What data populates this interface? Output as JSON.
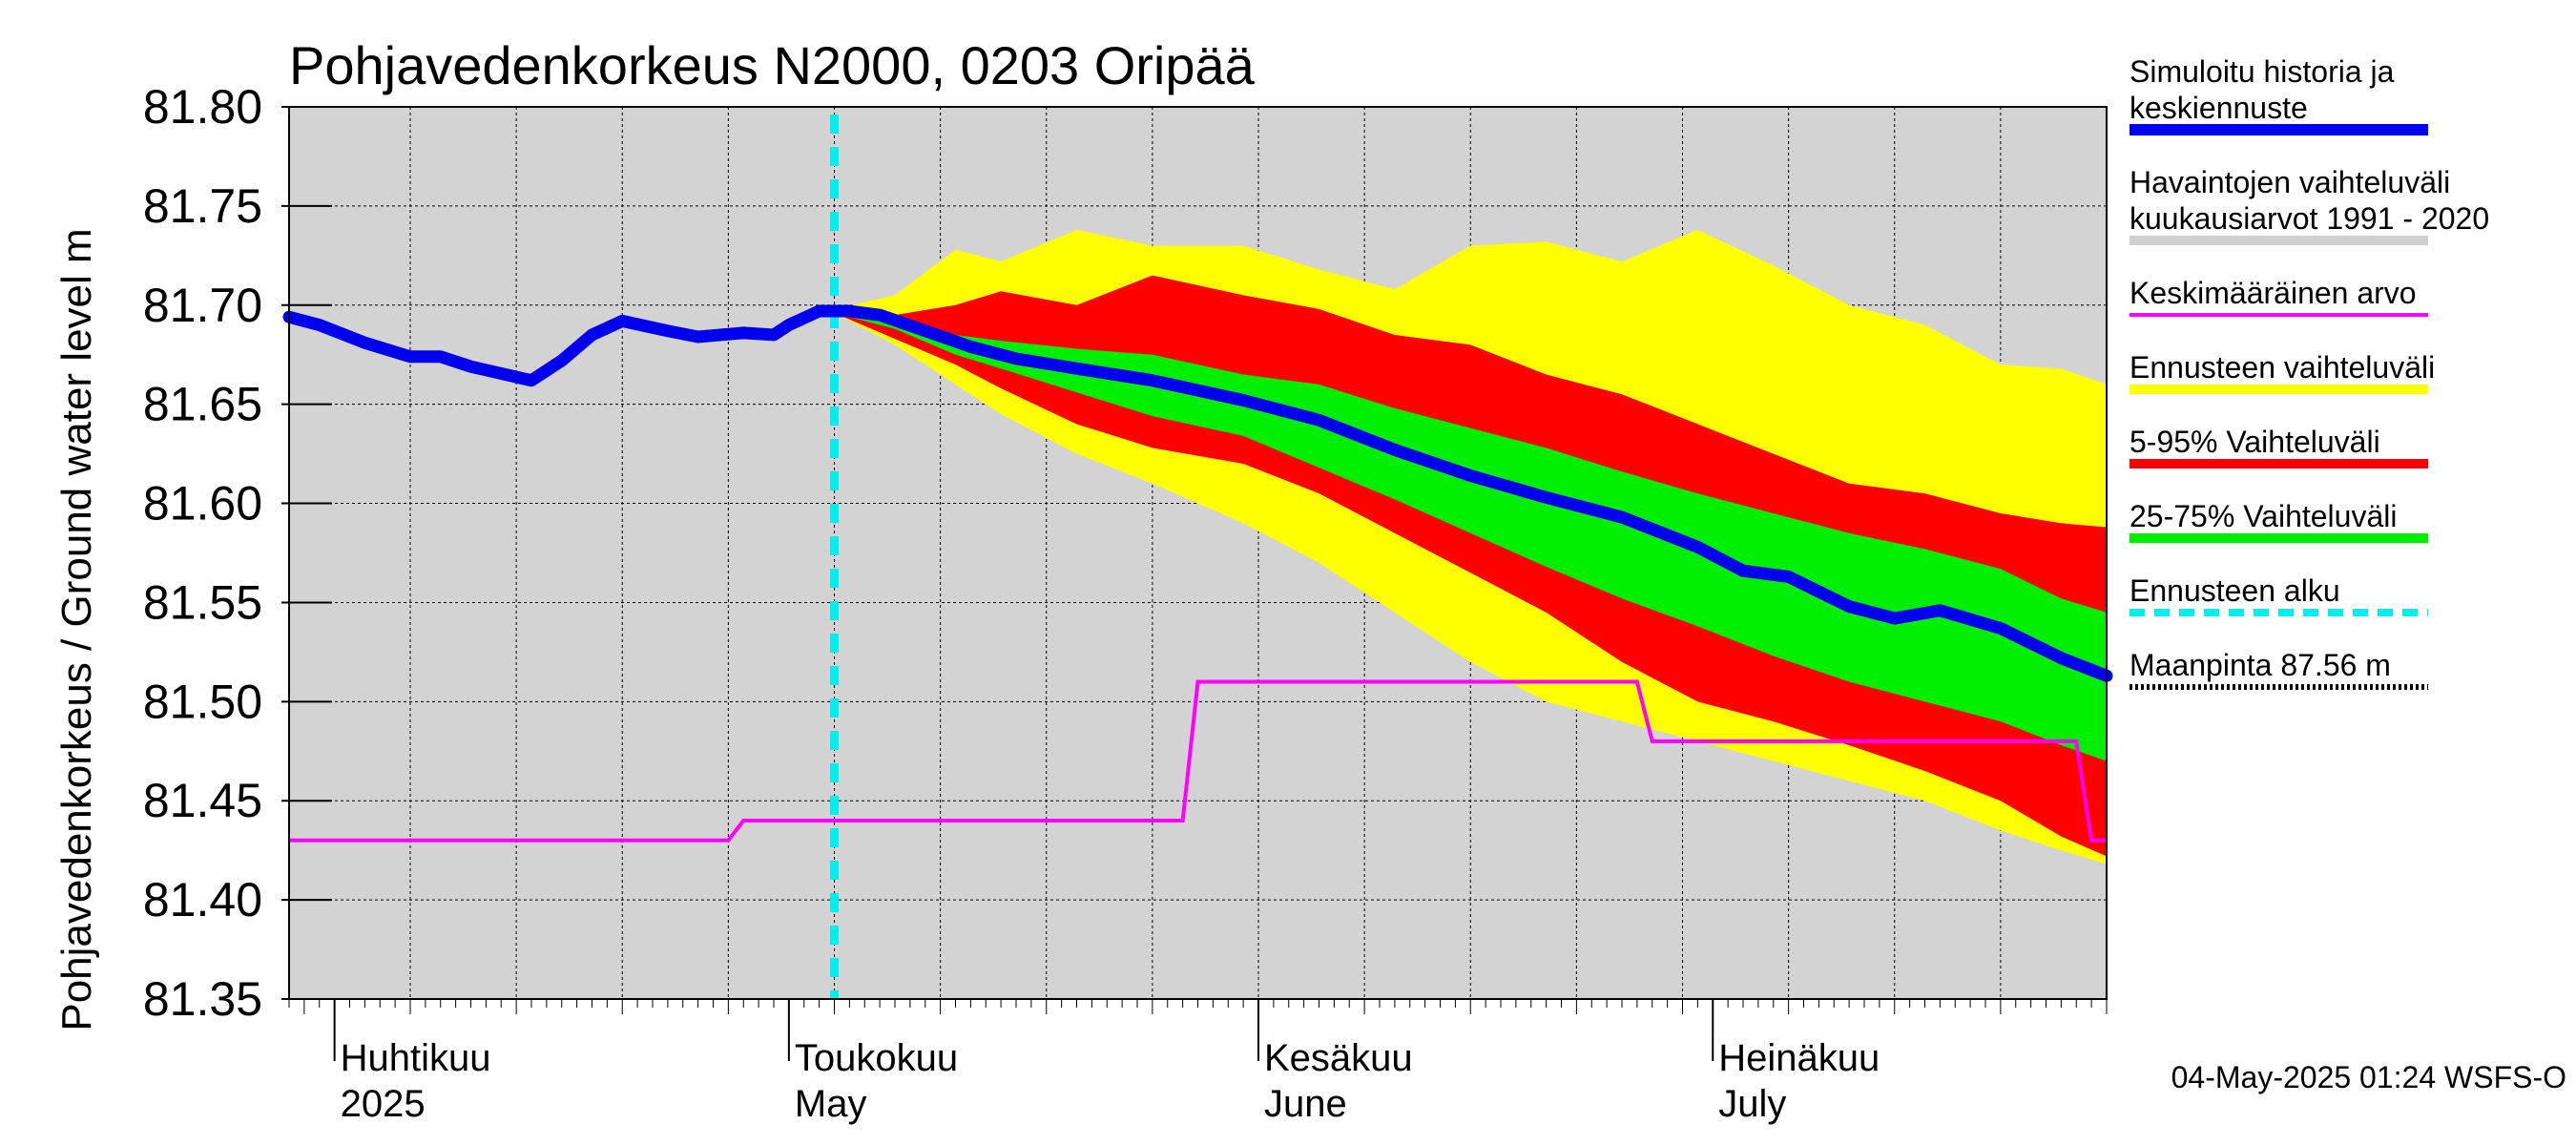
{
  "chart_data": {
    "type": "area",
    "title": "Pohjavedenkorkeus N2000, 0203 Oripää",
    "ylabel": "Pohjavedenkorkeus / Ground water level   m",
    "ylim": [
      81.35,
      81.8
    ],
    "yticks": [
      "81.80",
      "81.75",
      "81.70",
      "81.65",
      "81.60",
      "81.55",
      "81.50",
      "81.45",
      "81.40",
      "81.35"
    ],
    "xlim": [
      "2025-03-29",
      "2025-07-27"
    ],
    "month_labels": [
      {
        "date": "2025-04-01",
        "line1": "Huhtikuu",
        "line2": "2025"
      },
      {
        "date": "2025-05-01",
        "line1": "Toukokuu",
        "line2": "May"
      },
      {
        "date": "2025-06-01",
        "line1": "Kesäkuu",
        "line2": "June"
      },
      {
        "date": "2025-07-01",
        "line1": "Heinäkuu",
        "line2": "July"
      }
    ],
    "forecast_start": "2025-05-04",
    "footer": "04-May-2025 01:24 WSFS-O",
    "legend": [
      {
        "label": "Simuloitu historia ja keskiennuste",
        "color": "#0000ee",
        "style": "thick"
      },
      {
        "label": "Havaintojen vaihteluväli  kuukausiarvot 1991 - 2020",
        "color": "#d0d0d0",
        "style": "band"
      },
      {
        "label": "Keskimääräinen arvo",
        "color": "#ff00ff",
        "style": "thin"
      },
      {
        "label": "Ennusteen vaihteluväli",
        "color": "#ffff00",
        "style": "band"
      },
      {
        "label": "5-95% Vaihteluväli",
        "color": "#ff0000",
        "style": "band"
      },
      {
        "label": "25-75% Vaihteluväli",
        "color": "#00ee00",
        "style": "band"
      },
      {
        "label": "Ennusteen alku",
        "color": "#00eeee",
        "style": "dashed"
      },
      {
        "label": "Maanpinta 87.56 m",
        "color": "#000000",
        "style": "dotted"
      }
    ],
    "series": [
      {
        "name": "Simuloitu historia ja keskiennuste",
        "color": "#0000ee",
        "x": [
          "2025-03-29",
          "2025-03-31",
          "2025-04-03",
          "2025-04-06",
          "2025-04-08",
          "2025-04-10",
          "2025-04-14",
          "2025-04-16",
          "2025-04-18",
          "2025-04-20",
          "2025-04-23",
          "2025-04-25",
          "2025-04-28",
          "2025-04-30",
          "2025-05-01",
          "2025-05-03",
          "2025-05-05",
          "2025-05-07",
          "2025-05-10",
          "2025-05-13",
          "2025-05-16",
          "2025-05-20",
          "2025-05-25",
          "2025-05-31",
          "2025-06-05",
          "2025-06-10",
          "2025-06-15",
          "2025-06-20",
          "2025-06-25",
          "2025-06-30",
          "2025-07-03",
          "2025-07-06",
          "2025-07-10",
          "2025-07-13",
          "2025-07-16",
          "2025-07-20",
          "2025-07-24",
          "2025-07-27"
        ],
        "y": [
          81.694,
          81.69,
          81.681,
          81.674,
          81.674,
          81.669,
          81.662,
          81.672,
          81.685,
          81.692,
          81.687,
          81.684,
          81.686,
          81.685,
          81.69,
          81.697,
          81.697,
          81.695,
          81.687,
          81.679,
          81.673,
          81.668,
          81.662,
          81.652,
          81.642,
          81.627,
          81.614,
          81.603,
          81.593,
          81.578,
          81.566,
          81.563,
          81.548,
          81.542,
          81.546,
          81.537,
          81.522,
          81.513
        ]
      },
      {
        "name": "Ennusteen vaihteluväli",
        "color": "#ffff00",
        "x": [
          "2025-05-04",
          "2025-05-08",
          "2025-05-12",
          "2025-05-15",
          "2025-05-20",
          "2025-05-25",
          "2025-05-31",
          "2025-06-05",
          "2025-06-10",
          "2025-06-15",
          "2025-06-20",
          "2025-06-25",
          "2025-06-30",
          "2025-07-05",
          "2025-07-10",
          "2025-07-15",
          "2025-07-20",
          "2025-07-24",
          "2025-07-27"
        ],
        "upper": [
          81.698,
          81.705,
          81.728,
          81.722,
          81.738,
          81.73,
          81.73,
          81.718,
          81.708,
          81.73,
          81.732,
          81.722,
          81.738,
          81.72,
          81.7,
          81.69,
          81.67,
          81.668,
          81.66
        ],
        "lower": [
          81.696,
          81.68,
          81.66,
          81.645,
          81.625,
          81.61,
          81.59,
          81.57,
          81.545,
          81.52,
          81.5,
          81.49,
          81.48,
          81.47,
          81.46,
          81.45,
          81.435,
          81.425,
          81.418
        ]
      },
      {
        "name": "5-95% Vaihteluväli",
        "color": "#ff0000",
        "x": [
          "2025-05-04",
          "2025-05-08",
          "2025-05-12",
          "2025-05-15",
          "2025-05-20",
          "2025-05-25",
          "2025-05-31",
          "2025-06-05",
          "2025-06-10",
          "2025-06-15",
          "2025-06-20",
          "2025-06-25",
          "2025-06-30",
          "2025-07-05",
          "2025-07-10",
          "2025-07-15",
          "2025-07-20",
          "2025-07-24",
          "2025-07-27"
        ],
        "upper": [
          81.697,
          81.695,
          81.7,
          81.707,
          81.7,
          81.715,
          81.705,
          81.698,
          81.685,
          81.68,
          81.665,
          81.655,
          81.64,
          81.625,
          81.61,
          81.605,
          81.595,
          81.59,
          81.588
        ],
        "lower": [
          81.696,
          81.683,
          81.67,
          81.658,
          81.64,
          81.628,
          81.62,
          81.605,
          81.585,
          81.565,
          81.545,
          81.52,
          81.5,
          81.49,
          81.478,
          81.465,
          81.45,
          81.432,
          81.422
        ]
      },
      {
        "name": "25-75% Vaihteluväli",
        "color": "#00ee00",
        "x": [
          "2025-05-04",
          "2025-05-08",
          "2025-05-12",
          "2025-05-15",
          "2025-05-20",
          "2025-05-25",
          "2025-05-31",
          "2025-06-05",
          "2025-06-10",
          "2025-06-15",
          "2025-06-20",
          "2025-06-25",
          "2025-06-30",
          "2025-07-05",
          "2025-07-10",
          "2025-07-15",
          "2025-07-20",
          "2025-07-24",
          "2025-07-27"
        ],
        "upper": [
          81.697,
          81.691,
          81.685,
          81.682,
          81.678,
          81.675,
          81.665,
          81.66,
          81.648,
          81.638,
          81.628,
          81.616,
          81.605,
          81.595,
          81.585,
          81.577,
          81.567,
          81.552,
          81.545
        ],
        "lower": [
          81.696,
          81.688,
          81.675,
          81.668,
          81.656,
          81.644,
          81.634,
          81.618,
          81.602,
          81.585,
          81.568,
          81.552,
          81.538,
          81.523,
          81.51,
          81.5,
          81.49,
          81.478,
          81.47
        ]
      },
      {
        "name": "Keskimääräinen arvo",
        "color": "#ff00ff",
        "x": [
          "2025-03-29",
          "2025-04-27",
          "2025-04-28",
          "2025-05-27",
          "2025-05-28",
          "2025-06-26",
          "2025-06-27",
          "2025-07-25",
          "2025-07-26",
          "2025-07-27"
        ],
        "y": [
          81.43,
          81.43,
          81.44,
          81.44,
          81.51,
          81.51,
          81.48,
          81.48,
          81.43,
          81.43
        ]
      }
    ]
  }
}
